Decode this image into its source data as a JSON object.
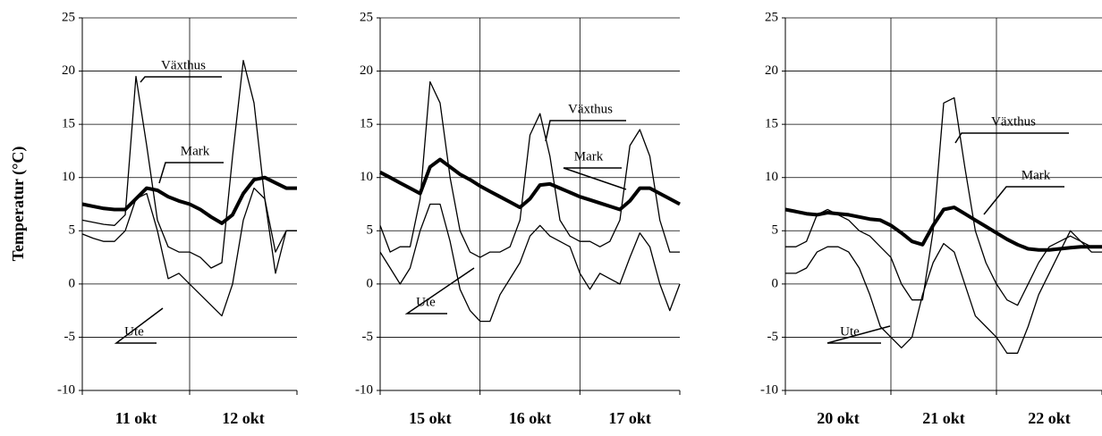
{
  "chart_data": [
    {
      "type": "line",
      "y_label": "Temperatur (°C)",
      "x": [
        0,
        0.1,
        0.2,
        0.3,
        0.4,
        0.5,
        0.6,
        0.7,
        0.8,
        0.9,
        1.0,
        1.1,
        1.2,
        1.3,
        1.4,
        1.5,
        1.6,
        1.7,
        1.8,
        1.9,
        2.0
      ],
      "xlim": [
        0,
        2
      ],
      "xticks": [
        {
          "value": 0.5,
          "label": "11 okt"
        },
        {
          "value": 1.5,
          "label": "12 okt"
        }
      ],
      "ylim": [
        -10,
        25
      ],
      "yticks": [
        -10,
        -5,
        0,
        5,
        10,
        15,
        20,
        25
      ],
      "grid": true,
      "series": [
        {
          "name": "Växthus",
          "color": "#000000",
          "values": [
            6,
            5.8,
            5.6,
            5.5,
            6.5,
            19.5,
            13,
            6,
            3.5,
            3,
            3,
            2.5,
            1.5,
            2,
            12,
            21,
            17,
            8,
            1,
            5,
            5
          ]
        },
        {
          "name": "Mark",
          "color": "#000000",
          "values": [
            7.5,
            7.3,
            7.1,
            7,
            7,
            8,
            9,
            8.8,
            8.2,
            7.8,
            7.5,
            7,
            6.3,
            5.7,
            6.5,
            8.5,
            9.8,
            10,
            9.5,
            9,
            9
          ]
        },
        {
          "name": "Ute",
          "color": "#000000",
          "values": [
            4.7,
            4.3,
            4,
            4,
            5,
            8,
            8.5,
            5,
            0.5,
            1,
            0,
            -1,
            -2,
            -3,
            0,
            6,
            9,
            8,
            3,
            5,
            5
          ]
        }
      ]
    },
    {
      "type": "line",
      "x": [
        0,
        0.1,
        0.2,
        0.3,
        0.4,
        0.5,
        0.6,
        0.7,
        0.8,
        0.9,
        1.0,
        1.1,
        1.2,
        1.3,
        1.4,
        1.5,
        1.6,
        1.7,
        1.8,
        1.9,
        2.0,
        2.1,
        2.2,
        2.3,
        2.4,
        2.5,
        2.6,
        2.7,
        2.8,
        2.9,
        3.0
      ],
      "xlim": [
        0,
        3
      ],
      "xticks": [
        {
          "value": 0.5,
          "label": "15 okt"
        },
        {
          "value": 1.5,
          "label": "16 okt"
        },
        {
          "value": 2.5,
          "label": "17 okt"
        }
      ],
      "ylim": [
        -10,
        25
      ],
      "yticks": [
        -10,
        -5,
        0,
        5,
        10,
        15,
        20,
        25
      ],
      "grid": true,
      "series": [
        {
          "name": "Växthus",
          "color": "#000000",
          "values": [
            5.5,
            3,
            3.5,
            3.5,
            8,
            19,
            17,
            10,
            5,
            3,
            2.5,
            3,
            3,
            3.5,
            6,
            14,
            16,
            12,
            6,
            4.5,
            4,
            4,
            3.5,
            4,
            6,
            13,
            14.5,
            12,
            6,
            3,
            3
          ]
        },
        {
          "name": "Mark",
          "color": "#000000",
          "values": [
            10.5,
            10,
            9.5,
            9,
            8.5,
            11,
            11.7,
            11,
            10.3,
            9.8,
            9.2,
            8.7,
            8.2,
            7.7,
            7.2,
            8,
            9.3,
            9.4,
            9,
            8.6,
            8.2,
            7.9,
            7.6,
            7.3,
            7,
            7.8,
            9,
            9,
            8.5,
            8,
            7.5
          ]
        },
        {
          "name": "Ute",
          "color": "#000000",
          "values": [
            3,
            1.5,
            0,
            1.5,
            5,
            7.5,
            7.5,
            4,
            -0.5,
            -2.5,
            -3.5,
            -3.5,
            -1,
            0.5,
            2,
            4.5,
            5.5,
            4.5,
            4,
            3.5,
            1,
            -0.5,
            1,
            0.5,
            0,
            2.5,
            4.8,
            3.5,
            0,
            -2.5,
            0
          ]
        }
      ]
    },
    {
      "type": "line",
      "x": [
        0,
        0.1,
        0.2,
        0.3,
        0.4,
        0.5,
        0.6,
        0.7,
        0.8,
        0.9,
        1.0,
        1.1,
        1.2,
        1.3,
        1.4,
        1.5,
        1.6,
        1.7,
        1.8,
        1.9,
        2.0,
        2.1,
        2.2,
        2.3,
        2.4,
        2.5,
        2.6,
        2.7,
        2.8,
        2.9,
        3.0
      ],
      "xlim": [
        0,
        3
      ],
      "xticks": [
        {
          "value": 0.5,
          "label": "20 okt"
        },
        {
          "value": 1.5,
          "label": "21 okt"
        },
        {
          "value": 2.5,
          "label": "22 okt"
        }
      ],
      "ylim": [
        -10,
        25
      ],
      "yticks": [
        -10,
        -5,
        0,
        5,
        10,
        15,
        20,
        25
      ],
      "grid": true,
      "series": [
        {
          "name": "Växthus",
          "color": "#000000",
          "values": [
            3.5,
            3.5,
            4,
            6.5,
            7,
            6.5,
            6,
            5,
            4.5,
            3.5,
            2.5,
            0,
            -1.5,
            -1.5,
            5,
            17,
            17.5,
            11,
            5,
            2,
            0,
            -1.5,
            -2,
            0,
            2,
            3.5,
            4,
            4.5,
            4,
            3.5,
            3.5
          ]
        },
        {
          "name": "Mark",
          "color": "#000000",
          "values": [
            7,
            6.8,
            6.6,
            6.5,
            6.7,
            6.6,
            6.5,
            6.3,
            6.1,
            6,
            5.5,
            4.8,
            4,
            3.7,
            5.5,
            7,
            7.2,
            6.6,
            6,
            5.4,
            4.8,
            4.2,
            3.7,
            3.3,
            3.2,
            3.2,
            3.3,
            3.4,
            3.5,
            3.5,
            3.5
          ]
        },
        {
          "name": "Ute",
          "color": "#000000",
          "values": [
            1,
            1,
            1.5,
            3,
            3.5,
            3.5,
            3,
            1.5,
            -1,
            -4,
            -5,
            -6,
            -5,
            -1,
            2,
            3.8,
            3,
            0,
            -3,
            -4,
            -5,
            -6.5,
            -6.5,
            -4,
            -1,
            1,
            3,
            5,
            4,
            3,
            3
          ]
        }
      ]
    }
  ]
}
